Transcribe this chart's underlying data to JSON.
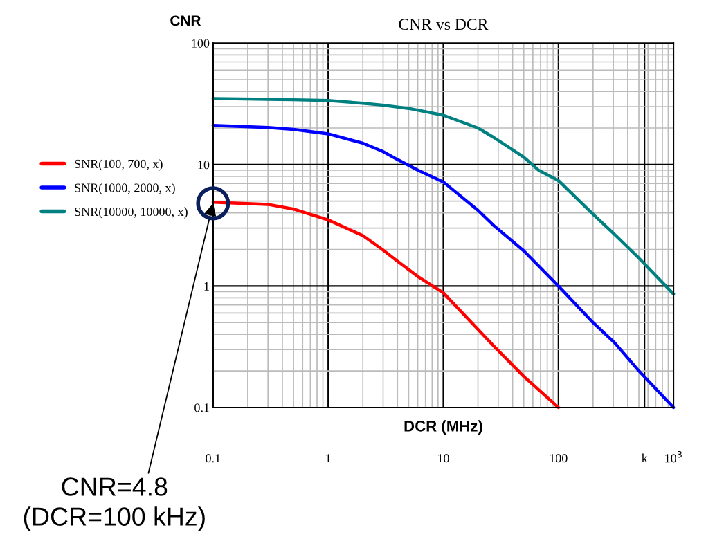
{
  "chart_data": {
    "type": "line",
    "title": "CNR vs DCR",
    "xlabel": "DCR (MHz)",
    "ylabel": "CNR",
    "log": "xy",
    "grid": true,
    "legend": "left",
    "line_style": "solid",
    "marker": "none",
    "xlim": [
      0.1,
      1000
    ],
    "ylim": [
      0.1,
      100
    ],
    "xticks": [
      0.1,
      1,
      10,
      100,
      {
        "value": 560,
        "label": "k"
      },
      {
        "value": 1000,
        "label": "10$^{3}$"
      }
    ],
    "yticks": [
      0.1,
      1,
      10,
      100
    ],
    "series": [
      {
        "name": "SNR(100, 700, x)",
        "color": "#ff0000",
        "x": [
          0.1,
          0.3,
          0.5,
          1,
          2,
          2.95,
          4,
          6.07,
          10,
          27.5,
          50,
          100
        ],
        "values": [
          4.9,
          4.7,
          4.3,
          3.5,
          2.6,
          2.0,
          1.6,
          1.19,
          0.88,
          0.32,
          0.18,
          0.1
        ]
      },
      {
        "name": "SNR(1000, 2000, x)",
        "color": "#0000ff",
        "x": [
          0.1,
          0.3,
          0.5,
          1,
          2,
          2.95,
          4,
          6.07,
          10,
          20,
          27.5,
          50,
          100,
          200,
          309,
          500,
          1000
        ],
        "values": [
          21,
          20.2,
          19.5,
          17.9,
          15,
          12.9,
          11,
          8.95,
          7.2,
          4.2,
          3.14,
          1.95,
          1.0,
          0.5,
          0.34,
          0.2,
          0.1
        ]
      },
      {
        "name": "SNR(10000, 10000, x)",
        "color": "#008080",
        "x": [
          0.1,
          0.3,
          0.5,
          1,
          2,
          2.95,
          5,
          10,
          20,
          27.5,
          50,
          67.7,
          100,
          200,
          309,
          500,
          1000
        ],
        "values": [
          35,
          34.5,
          34.2,
          33.7,
          32,
          30.9,
          29,
          25.5,
          20,
          16.7,
          11.5,
          8.95,
          7.4,
          3.9,
          2.65,
          1.7,
          0.86
        ]
      }
    ],
    "annotations": [
      {
        "text": "CNR=4.8\n(DCR=100 kHz)",
        "x": 0.1,
        "y": 4.8
      }
    ]
  }
}
